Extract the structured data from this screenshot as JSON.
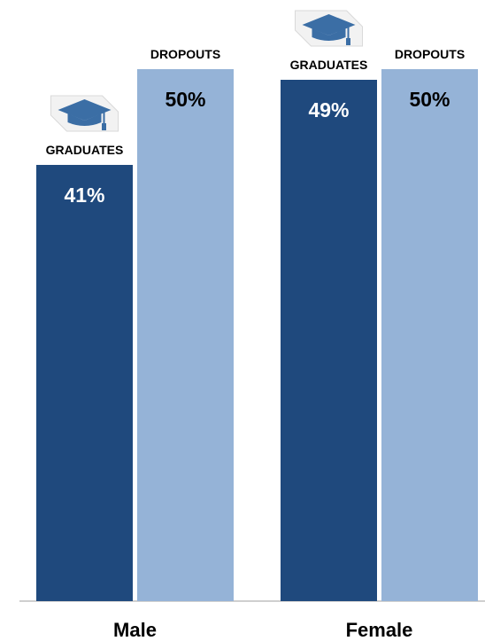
{
  "chart_data": {
    "type": "bar",
    "categories": [
      "Male",
      "Female"
    ],
    "series": [
      {
        "name": "GRADUATES",
        "values": [
          41,
          49
        ],
        "labels": [
          "41%",
          "49%"
        ],
        "color": "#1f497d"
      },
      {
        "name": "DROPOUTS",
        "values": [
          50,
          50
        ],
        "labels": [
          "50%",
          "50%"
        ],
        "color": "#95b3d7"
      }
    ],
    "ylim": [
      0,
      100
    ],
    "title": "",
    "xlabel": "",
    "ylabel": "",
    "grid": false,
    "legend": "none",
    "icons": {
      "graduates": "graduation-cap-icon"
    },
    "colors": {
      "label_on_dark": "#ffffff",
      "label_on_light": "#000000",
      "axis": "#bfbfbf",
      "cap": "#3b6ea5"
    }
  }
}
